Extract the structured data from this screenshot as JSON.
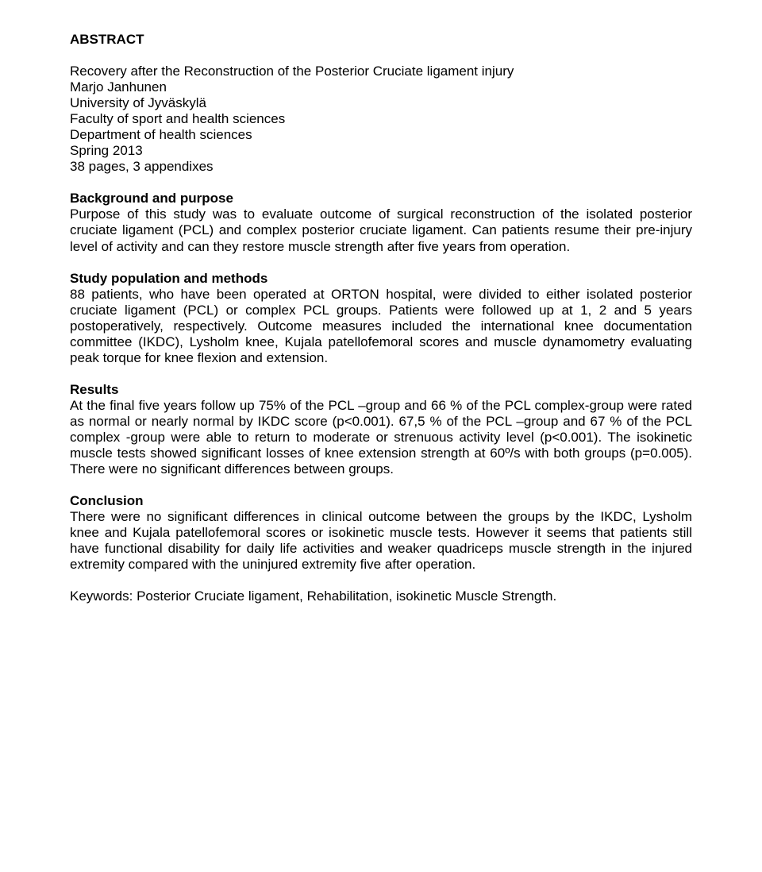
{
  "title": "ABSTRACT",
  "meta": {
    "line1": "Recovery after the Reconstruction of the Posterior Cruciate ligament injury",
    "line2": "Marjo Janhunen",
    "line3": "University of Jyväskylä",
    "line4": "Faculty of sport and health sciences",
    "line5": "Department of health sciences",
    "line6": "Spring 2013",
    "line7": "38 pages, 3 appendixes"
  },
  "sections": {
    "background": {
      "heading": "Background and purpose",
      "body": "Purpose of this study was to evaluate outcome of surgical reconstruction of the isolated posterior cruciate ligament (PCL) and complex posterior cruciate ligament. Can patients resume their pre-injury level of activity and can they restore muscle strength after five years from operation."
    },
    "methods": {
      "heading": "Study population and methods",
      "body": "88 patients, who have been operated at ORTON hospital, were divided to either isolated posterior cruciate ligament (PCL) or complex PCL groups. Patients were followed up at 1, 2 and 5 years postoperatively, respectively. Outcome measures included the international knee documentation committee (IKDC), Lysholm knee, Kujala patellofemoral scores and muscle dynamometry evaluating peak torque for knee flexion and extension."
    },
    "results": {
      "heading": "Results",
      "body": "At the final five years follow up 75% of the PCL –group and 66 % of the PCL complex-group were rated as normal or nearly normal by IKDC score (p<0.001). 67,5 % of the PCL –group and 67 % of the PCL complex -group were able to return to moderate or strenuous activity level (p<0.001). The isokinetic muscle tests showed significant losses of knee extension strength at 60º/s with both groups (p=0.005). There were no significant differences between groups."
    },
    "conclusion": {
      "heading": "Conclusion",
      "body": "There were no significant differences in clinical outcome between the groups by the IKDC, Lysholm knee and Kujala patellofemoral scores or isokinetic muscle tests. However it seems that patients still have functional disability for daily life activities and weaker quadriceps muscle strength in the injured extremity compared with the uninjured extremity five after operation."
    }
  },
  "keywords": "Keywords: Posterior Cruciate ligament, Rehabilitation, isokinetic Muscle Strength."
}
